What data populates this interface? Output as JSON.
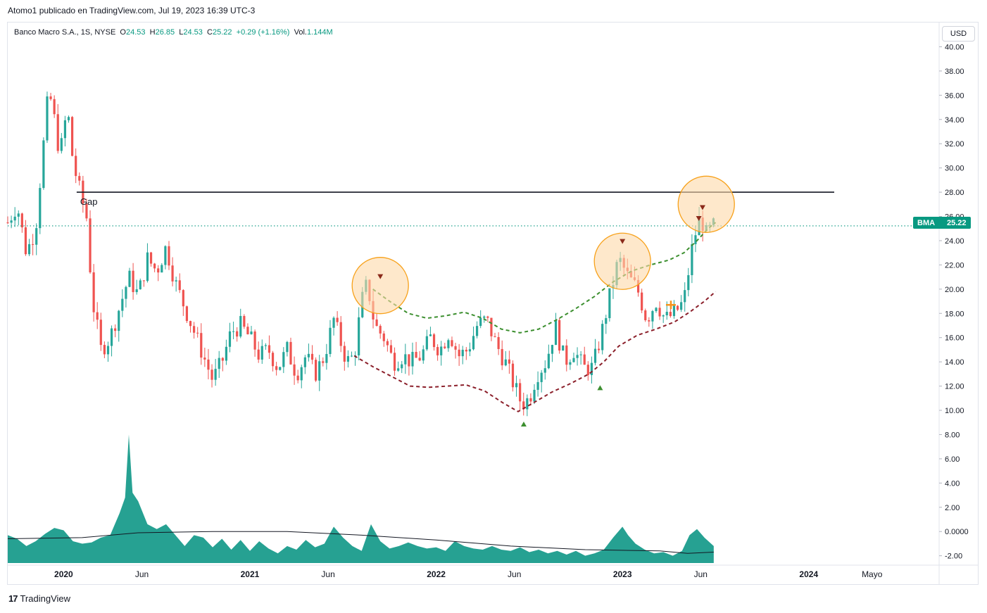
{
  "attribution": "Atomo1 publicado en TradingView.com, Jul 19, 2023 16:39 UTC-3",
  "legend": {
    "symbol": "Banco Macro S.A., 1S, NYSE",
    "o_label": "O",
    "o_value": "24.53",
    "h_label": "H",
    "h_value": "26.85",
    "l_label": "L",
    "l_value": "24.53",
    "c_label": "C",
    "c_value": "25.22",
    "change": "+0.29 (+1.16%)",
    "vol_label": "Vol.",
    "vol_value": "1.144M"
  },
  "currency_button": "USD",
  "price_tag": {
    "symbol": "BMA",
    "value": "25.22"
  },
  "annotations": {
    "gap_label": "Gap"
  },
  "footer": {
    "brand": "TradingView"
  },
  "colors": {
    "up": "#089981",
    "down": "#f23645",
    "up_candle": "#26a69a",
    "down_candle": "#ef5350",
    "circle_fill": "#fdd8a8",
    "circle_stroke": "#f7a11a",
    "green_dash": "#3c8f2f",
    "maroon_dash": "#8b1f2a",
    "volume": "#1a9c8c"
  },
  "chart_data": {
    "type": "candlestick",
    "y_axis_ticks": [
      "40.00",
      "38.00",
      "36.00",
      "34.00",
      "32.00",
      "30.00",
      "28.00",
      "26.00",
      "24.00",
      "22.00",
      "20.00",
      "18.00",
      "16.00",
      "14.00",
      "12.00",
      "10.00",
      "8.00",
      "6.00",
      "4.00",
      "2.00",
      "0.0000",
      "-2.00"
    ],
    "y_range": [
      -2.6,
      40.2
    ],
    "x_axis_ticks": [
      {
        "label": "2020",
        "bold": true,
        "t": 2020.0
      },
      {
        "label": "Jun",
        "bold": false,
        "t": 2020.42
      },
      {
        "label": "2021",
        "bold": true,
        "t": 2021.0
      },
      {
        "label": "Jun",
        "bold": false,
        "t": 2021.42
      },
      {
        "label": "2022",
        "bold": true,
        "t": 2022.0
      },
      {
        "label": "Jun",
        "bold": false,
        "t": 2022.42
      },
      {
        "label": "2023",
        "bold": true,
        "t": 2023.0
      },
      {
        "label": "Jun",
        "bold": false,
        "t": 2023.42
      },
      {
        "label": "2024",
        "bold": true,
        "t": 2024.0
      },
      {
        "label": "Mayo",
        "bold": false,
        "t": 2024.34
      }
    ],
    "x_range": [
      2019.7,
      2024.7
    ],
    "last_price": 25.22,
    "gap_line_price": 28.0,
    "close_path": [
      [
        2019.7,
        25.5
      ],
      [
        2019.75,
        27.0
      ],
      [
        2019.8,
        23.0
      ],
      [
        2019.85,
        25.0
      ],
      [
        2019.88,
        30.0
      ],
      [
        2019.92,
        36.5
      ],
      [
        2019.95,
        34.0
      ],
      [
        2019.98,
        31.0
      ],
      [
        2020.02,
        35.0
      ],
      [
        2020.05,
        30.5
      ],
      [
        2020.08,
        28.5
      ],
      [
        2020.13,
        25.5
      ],
      [
        2020.15,
        19.5
      ],
      [
        2020.2,
        15.0
      ],
      [
        2020.25,
        16.0
      ],
      [
        2020.3,
        18.5
      ],
      [
        2020.35,
        21.0
      ],
      [
        2020.4,
        19.5
      ],
      [
        2020.45,
        22.5
      ],
      [
        2020.5,
        21.5
      ],
      [
        2020.55,
        23.5
      ],
      [
        2020.6,
        20.5
      ],
      [
        2020.65,
        18.5
      ],
      [
        2020.7,
        16.5
      ],
      [
        2020.75,
        14.5
      ],
      [
        2020.8,
        12.5
      ],
      [
        2020.85,
        14.0
      ],
      [
        2020.9,
        16.5
      ],
      [
        2020.95,
        17.0
      ],
      [
        2021.0,
        16.0
      ],
      [
        2021.05,
        14.5
      ],
      [
        2021.1,
        15.0
      ],
      [
        2021.15,
        13.5
      ],
      [
        2021.2,
        15.0
      ],
      [
        2021.25,
        13.0
      ],
      [
        2021.3,
        14.5
      ],
      [
        2021.35,
        13.0
      ],
      [
        2021.4,
        14.5
      ],
      [
        2021.45,
        17.5
      ],
      [
        2021.48,
        16.0
      ],
      [
        2021.52,
        14.0
      ],
      [
        2021.56,
        14.5
      ],
      [
        2021.6,
        19.0
      ],
      [
        2021.63,
        20.5
      ],
      [
        2021.67,
        17.0
      ],
      [
        2021.72,
        16.0
      ],
      [
        2021.77,
        14.0
      ],
      [
        2021.82,
        14.5
      ],
      [
        2021.87,
        14.0
      ],
      [
        2021.92,
        14.5
      ],
      [
        2021.97,
        16.0
      ],
      [
        2022.02,
        15.0
      ],
      [
        2022.07,
        16.5
      ],
      [
        2022.12,
        14.5
      ],
      [
        2022.17,
        15.0
      ],
      [
        2022.22,
        17.0
      ],
      [
        2022.27,
        17.5
      ],
      [
        2022.32,
        15.5
      ],
      [
        2022.37,
        14.0
      ],
      [
        2022.42,
        12.0
      ],
      [
        2022.46,
        10.5
      ],
      [
        2022.5,
        11.0
      ],
      [
        2022.54,
        13.0
      ],
      [
        2022.59,
        14.0
      ],
      [
        2022.64,
        17.0
      ],
      [
        2022.69,
        14.0
      ],
      [
        2022.74,
        15.0
      ],
      [
        2022.79,
        13.5
      ],
      [
        2022.84,
        13.5
      ],
      [
        2022.89,
        16.5
      ],
      [
        2022.94,
        20.0
      ],
      [
        2022.98,
        22.5
      ],
      [
        2023.03,
        21.0
      ],
      [
        2023.08,
        20.0
      ],
      [
        2023.13,
        17.5
      ],
      [
        2023.18,
        19.0
      ],
      [
        2023.23,
        17.5
      ],
      [
        2023.28,
        18.0
      ],
      [
        2023.33,
        19.0
      ],
      [
        2023.38,
        24.0
      ],
      [
        2023.42,
        26.0
      ],
      [
        2023.45,
        24.5
      ],
      [
        2023.49,
        25.2
      ]
    ],
    "volume_path": [
      [
        2019.7,
        -0.3
      ],
      [
        2019.75,
        -0.6
      ],
      [
        2019.8,
        -1.2
      ],
      [
        2019.85,
        -0.8
      ],
      [
        2019.9,
        -0.2
      ],
      [
        2019.95,
        0.3
      ],
      [
        2020.0,
        0.1
      ],
      [
        2020.05,
        -0.8
      ],
      [
        2020.1,
        -1.0
      ],
      [
        2020.15,
        -0.9
      ],
      [
        2020.2,
        -0.5
      ],
      [
        2020.25,
        -0.3
      ],
      [
        2020.3,
        1.5
      ],
      [
        2020.33,
        2.8
      ],
      [
        2020.35,
        8.0
      ],
      [
        2020.37,
        3.2
      ],
      [
        2020.4,
        2.5
      ],
      [
        2020.45,
        0.6
      ],
      [
        2020.5,
        0.2
      ],
      [
        2020.55,
        0.6
      ],
      [
        2020.6,
        -0.3
      ],
      [
        2020.65,
        -1.2
      ],
      [
        2020.7,
        -0.3
      ],
      [
        2020.75,
        -0.5
      ],
      [
        2020.8,
        -1.3
      ],
      [
        2020.85,
        -0.6
      ],
      [
        2020.9,
        -1.5
      ],
      [
        2020.95,
        -0.7
      ],
      [
        2021.0,
        -1.6
      ],
      [
        2021.05,
        -0.8
      ],
      [
        2021.1,
        -1.4
      ],
      [
        2021.15,
        -1.8
      ],
      [
        2021.2,
        -1.2
      ],
      [
        2021.25,
        -1.5
      ],
      [
        2021.3,
        -0.7
      ],
      [
        2021.35,
        -1.3
      ],
      [
        2021.4,
        -1.0
      ],
      [
        2021.45,
        0.4
      ],
      [
        2021.5,
        -0.5
      ],
      [
        2021.55,
        -1.2
      ],
      [
        2021.6,
        -1.6
      ],
      [
        2021.65,
        0.6
      ],
      [
        2021.7,
        -0.8
      ],
      [
        2021.75,
        -1.4
      ],
      [
        2021.8,
        -1.2
      ],
      [
        2021.85,
        -0.9
      ],
      [
        2021.9,
        -1.2
      ],
      [
        2021.95,
        -1.4
      ],
      [
        2022.0,
        -1.3
      ],
      [
        2022.05,
        -1.6
      ],
      [
        2022.1,
        -0.8
      ],
      [
        2022.15,
        -1.2
      ],
      [
        2022.2,
        -1.4
      ],
      [
        2022.25,
        -1.5
      ],
      [
        2022.3,
        -1.2
      ],
      [
        2022.35,
        -1.5
      ],
      [
        2022.4,
        -1.6
      ],
      [
        2022.45,
        -1.3
      ],
      [
        2022.5,
        -1.7
      ],
      [
        2022.55,
        -1.5
      ],
      [
        2022.6,
        -1.8
      ],
      [
        2022.65,
        -1.6
      ],
      [
        2022.7,
        -1.9
      ],
      [
        2022.75,
        -1.6
      ],
      [
        2022.8,
        -2.0
      ],
      [
        2022.85,
        -1.8
      ],
      [
        2022.9,
        -1.5
      ],
      [
        2022.95,
        -0.5
      ],
      [
        2023.0,
        0.4
      ],
      [
        2023.03,
        -0.3
      ],
      [
        2023.07,
        -1.0
      ],
      [
        2023.12,
        -1.5
      ],
      [
        2023.17,
        -1.8
      ],
      [
        2023.22,
        -1.7
      ],
      [
        2023.27,
        -2.0
      ],
      [
        2023.32,
        -1.6
      ],
      [
        2023.36,
        -0.3
      ],
      [
        2023.4,
        0.2
      ],
      [
        2023.44,
        -0.5
      ],
      [
        2023.49,
        -1.2
      ]
    ],
    "volume_ma_path": [
      [
        2019.7,
        -0.6
      ],
      [
        2020.1,
        -0.5
      ],
      [
        2020.4,
        -0.1
      ],
      [
        2020.8,
        0.0
      ],
      [
        2021.2,
        0.0
      ],
      [
        2021.6,
        -0.3
      ],
      [
        2022.0,
        -0.7
      ],
      [
        2022.4,
        -1.2
      ],
      [
        2022.8,
        -1.5
      ],
      [
        2023.2,
        -1.6
      ],
      [
        2023.35,
        -1.8
      ],
      [
        2023.49,
        -1.7
      ]
    ],
    "green_dashed_curve": [
      [
        2021.66,
        20.0
      ],
      [
        2021.75,
        19.0
      ],
      [
        2021.85,
        18.0
      ],
      [
        2021.95,
        17.6
      ],
      [
        2022.05,
        17.8
      ],
      [
        2022.15,
        18.1
      ],
      [
        2022.25,
        17.6
      ],
      [
        2022.35,
        16.7
      ],
      [
        2022.45,
        16.4
      ],
      [
        2022.55,
        16.7
      ],
      [
        2022.65,
        17.5
      ],
      [
        2022.75,
        18.4
      ],
      [
        2022.85,
        19.4
      ],
      [
        2022.95,
        20.6
      ],
      [
        2023.05,
        21.5
      ],
      [
        2023.15,
        22.0
      ],
      [
        2023.25,
        22.4
      ],
      [
        2023.33,
        23.0
      ],
      [
        2023.4,
        24.0
      ],
      [
        2023.46,
        25.0
      ],
      [
        2023.5,
        25.5
      ]
    ],
    "maroon_dashed_curve": [
      [
        2021.56,
        14.5
      ],
      [
        2021.66,
        13.6
      ],
      [
        2021.76,
        12.8
      ],
      [
        2021.86,
        12.0
      ],
      [
        2021.96,
        11.9
      ],
      [
        2022.06,
        12.0
      ],
      [
        2022.16,
        12.1
      ],
      [
        2022.26,
        11.6
      ],
      [
        2022.36,
        10.6
      ],
      [
        2022.44,
        9.9
      ],
      [
        2022.52,
        10.6
      ],
      [
        2022.62,
        11.5
      ],
      [
        2022.72,
        12.2
      ],
      [
        2022.82,
        13.0
      ],
      [
        2022.9,
        14.0
      ],
      [
        2022.98,
        15.3
      ],
      [
        2023.08,
        16.2
      ],
      [
        2023.18,
        16.7
      ],
      [
        2023.28,
        17.3
      ],
      [
        2023.36,
        18.1
      ],
      [
        2023.44,
        19.0
      ],
      [
        2023.5,
        19.8
      ]
    ],
    "circles": [
      {
        "t": 2021.7,
        "price": 20.3
      },
      {
        "t": 2023.0,
        "price": 22.3
      },
      {
        "t": 2023.45,
        "price": 27.0
      }
    ],
    "down_markers": [
      {
        "t": 2021.7,
        "price": 21.0
      },
      {
        "t": 2023.0,
        "price": 23.9
      },
      {
        "t": 2023.41,
        "price": 25.8
      },
      {
        "t": 2023.43,
        "price": 26.7
      }
    ],
    "up_markers": [
      {
        "t": 2022.47,
        "price": 8.9
      },
      {
        "t": 2022.88,
        "price": 11.9
      }
    ],
    "orange_cross": {
      "t": 2023.26,
      "price": 18.7
    }
  }
}
